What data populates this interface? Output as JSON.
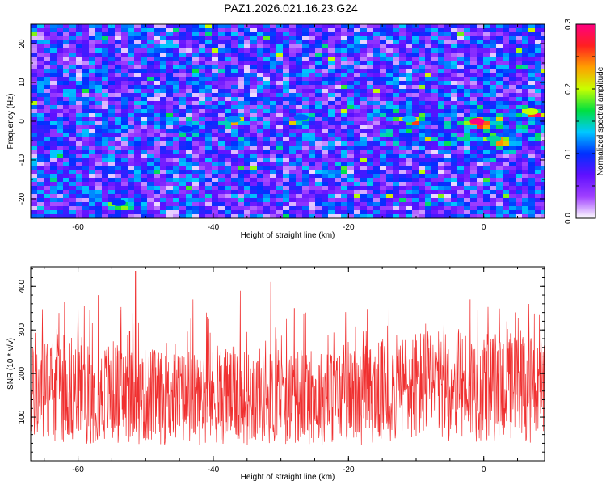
{
  "title": "PAZ1.2026.021.16.23.G24",
  "chart_data": [
    {
      "type": "heatmap",
      "xlabel": "Height of straight line (km)",
      "ylabel": "Frequency (Hz)",
      "xlim": [
        -67,
        9
      ],
      "ylim": [
        -25,
        25
      ],
      "xticks": [
        -60,
        -40,
        -20,
        0
      ],
      "yticks": [
        -20,
        -10,
        0,
        10,
        20
      ],
      "xtick_labels": [
        "-60",
        "-40",
        "-20",
        "0"
      ],
      "ytick_labels": [
        "-20",
        "-10",
        "0",
        "10",
        "20"
      ],
      "colorbar": {
        "label": "Normalized spectral amplitude",
        "range": [
          0.0,
          0.3
        ],
        "ticks": [
          0.0,
          0.1,
          0.2,
          0.3
        ],
        "tick_labels": [
          "0.0",
          "0.1",
          "0.2",
          "0.3"
        ],
        "colormap": [
          "#ffffff",
          "#a040ff",
          "#6010ff",
          "#0030ff",
          "#00c8ff",
          "#00e040",
          "#c8ff00",
          "#ffa000",
          "#ff2020",
          "#ff0080"
        ]
      },
      "hotspots": [
        {
          "x": -1,
          "y": 0,
          "value": 0.3
        },
        {
          "x": 7,
          "y": 2.5,
          "value": 0.2
        },
        {
          "x": 1.5,
          "y": -4.5,
          "value": 0.15
        },
        {
          "x": -11,
          "y": 0.5,
          "value": 0.13
        },
        {
          "x": -37,
          "y": 0.5,
          "value": 0.12
        },
        {
          "x": -27,
          "y": 1,
          "value": 0.11
        },
        {
          "x": -54,
          "y": -21,
          "value": 0.1
        },
        {
          "x": -44,
          "y": -2,
          "value": 0.1
        }
      ]
    },
    {
      "type": "line",
      "xlabel": "Height of straight line (km)",
      "ylabel": "SNR (10 * v/v)",
      "xlim": [
        -67,
        9
      ],
      "ylim": [
        0,
        445
      ],
      "xticks": [
        -60,
        -40,
        -20,
        0
      ],
      "yticks": [
        100,
        200,
        300,
        400
      ],
      "xtick_labels": [
        "-60",
        "-40",
        "-20",
        "0"
      ],
      "ytick_labels": [
        "100",
        "200",
        "300",
        "400"
      ],
      "series": [
        {
          "color": "#f03030",
          "x": [
            -67,
            -65,
            -63,
            -61,
            -59,
            -57,
            -55,
            -53,
            -51,
            -49,
            -47,
            -45,
            -43,
            -41,
            -39,
            -37,
            -35,
            -33,
            -31,
            -29,
            -27,
            -25,
            -23,
            -21,
            -19,
            -17,
            -15,
            -13,
            -11,
            -9,
            -7,
            -5,
            -3,
            -1,
            1,
            3,
            5,
            7,
            9
          ],
          "values": [
            150,
            160,
            170,
            165,
            155,
            150,
            160,
            150,
            145,
            150,
            140,
            145,
            140,
            150,
            145,
            150,
            145,
            150,
            140,
            145,
            150,
            145,
            145,
            150,
            140,
            150,
            160,
            165,
            170,
            175,
            170,
            170,
            175,
            170,
            165,
            175,
            170,
            165,
            150
          ],
          "peaks": [
            {
              "x": -51.5,
              "y": 435
            },
            {
              "x": -31.5,
              "y": 410
            },
            {
              "x": -36,
              "y": 390
            },
            {
              "x": -57,
              "y": 380
            },
            {
              "x": -14,
              "y": 375
            },
            {
              "x": -43,
              "y": 370
            },
            {
              "x": -2,
              "y": 370
            },
            {
              "x": -28,
              "y": 350
            },
            {
              "x": -60,
              "y": 360
            }
          ]
        }
      ]
    }
  ]
}
